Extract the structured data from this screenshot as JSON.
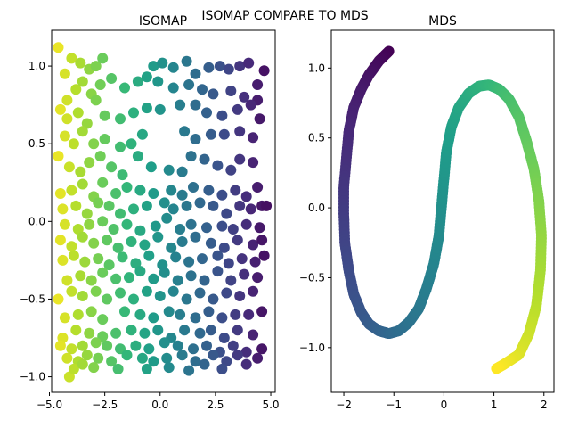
{
  "figure": {
    "suptitle": "ISOMAP COMPARE TO MDS"
  },
  "chart_data": [
    {
      "type": "scatter",
      "title": "ISOMAP",
      "xlabel": "",
      "ylabel": "",
      "xlim": [
        -4.9,
        5.2
      ],
      "ylim": [
        -1.1,
        1.23
      ],
      "xticks": [
        -5.0,
        -2.5,
        0.0,
        2.5,
        5.0
      ],
      "xtick_labels": [
        "−5.0",
        "−2.5",
        "0.0",
        "2.5",
        "5.0"
      ],
      "yticks": [
        -1.0,
        -0.5,
        0.0,
        0.5,
        1.0
      ],
      "ytick_labels": [
        "−1.0",
        "−0.5",
        "0.0",
        "0.5",
        "1.0"
      ],
      "colormap": "viridis (reversed along x)",
      "grid": false,
      "points": [
        [
          -4.6,
          1.12
        ],
        [
          -4.3,
          0.95
        ],
        [
          -4.0,
          1.05
        ],
        [
          -3.6,
          1.02
        ],
        [
          -3.2,
          0.98
        ],
        [
          -2.9,
          1.0
        ],
        [
          -2.6,
          1.05
        ],
        [
          -0.3,
          1.0
        ],
        [
          0.1,
          1.02
        ],
        [
          0.6,
          0.99
        ],
        [
          1.2,
          1.03
        ],
        [
          1.6,
          0.95
        ],
        [
          2.2,
          0.99
        ],
        [
          2.7,
          1.0
        ],
        [
          3.1,
          0.98
        ],
        [
          3.6,
          1.0
        ],
        [
          4.0,
          1.02
        ],
        [
          4.7,
          0.97
        ],
        [
          4.4,
          0.88
        ],
        [
          -4.5,
          0.72
        ],
        [
          -4.2,
          0.78
        ],
        [
          -3.8,
          0.85
        ],
        [
          -3.5,
          0.9
        ],
        [
          -3.1,
          0.82
        ],
        [
          -2.7,
          0.88
        ],
        [
          -2.2,
          0.92
        ],
        [
          -1.6,
          0.86
        ],
        [
          -1.0,
          0.9
        ],
        [
          -0.6,
          0.93
        ],
        [
          -0.1,
          0.9
        ],
        [
          0.6,
          0.86
        ],
        [
          1.3,
          0.88
        ],
        [
          1.9,
          0.85
        ],
        [
          2.4,
          0.82
        ],
        [
          3.2,
          0.84
        ],
        [
          3.8,
          0.8
        ],
        [
          4.4,
          0.78
        ],
        [
          -4.2,
          0.66
        ],
        [
          -3.7,
          0.7
        ],
        [
          -3.3,
          0.63
        ],
        [
          -2.9,
          0.78
        ],
        [
          -2.5,
          0.68
        ],
        [
          -1.8,
          0.66
        ],
        [
          -1.2,
          0.7
        ],
        [
          -0.6,
          0.73
        ],
        [
          0.0,
          0.72
        ],
        [
          0.9,
          0.75
        ],
        [
          1.6,
          0.75
        ],
        [
          2.1,
          0.7
        ],
        [
          2.8,
          0.68
        ],
        [
          3.5,
          0.72
        ],
        [
          4.1,
          0.75
        ],
        [
          4.5,
          0.66
        ],
        [
          -4.3,
          0.55
        ],
        [
          -3.9,
          0.5
        ],
        [
          -3.5,
          0.58
        ],
        [
          -3.0,
          0.5
        ],
        [
          -2.5,
          0.53
        ],
        [
          -1.8,
          0.48
        ],
        [
          -1.3,
          0.5
        ],
        [
          -0.8,
          0.56
        ],
        [
          1.1,
          0.58
        ],
        [
          1.6,
          0.53
        ],
        [
          2.3,
          0.56
        ],
        [
          2.9,
          0.56
        ],
        [
          3.6,
          0.58
        ],
        [
          4.2,
          0.54
        ],
        [
          -4.6,
          0.42
        ],
        [
          -4.1,
          0.35
        ],
        [
          -3.6,
          0.32
        ],
        [
          -3.2,
          0.38
        ],
        [
          -2.7,
          0.42
        ],
        [
          -2.2,
          0.35
        ],
        [
          -1.7,
          0.3
        ],
        [
          -1.0,
          0.42
        ],
        [
          -0.4,
          0.35
        ],
        [
          0.4,
          0.33
        ],
        [
          1.0,
          0.32
        ],
        [
          1.4,
          0.42
        ],
        [
          2.0,
          0.4
        ],
        [
          2.6,
          0.36
        ],
        [
          3.2,
          0.33
        ],
        [
          3.6,
          0.4
        ],
        [
          4.2,
          0.38
        ],
        [
          -4.5,
          0.18
        ],
        [
          -4.0,
          0.2
        ],
        [
          -3.5,
          0.24
        ],
        [
          -3.0,
          0.16
        ],
        [
          -2.6,
          0.25
        ],
        [
          -2.0,
          0.18
        ],
        [
          -1.5,
          0.22
        ],
        [
          -0.9,
          0.2
        ],
        [
          -0.3,
          0.18
        ],
        [
          0.5,
          0.2
        ],
        [
          1.0,
          0.17
        ],
        [
          1.5,
          0.22
        ],
        [
          2.2,
          0.2
        ],
        [
          2.8,
          0.17
        ],
        [
          3.4,
          0.2
        ],
        [
          3.9,
          0.16
        ],
        [
          4.4,
          0.22
        ],
        [
          -4.4,
          0.08
        ],
        [
          -3.8,
          0.1
        ],
        [
          -3.3,
          0.05
        ],
        [
          -2.8,
          0.12
        ],
        [
          -2.3,
          0.1
        ],
        [
          -1.8,
          0.05
        ],
        [
          -1.2,
          0.08
        ],
        [
          -0.6,
          0.1
        ],
        [
          0.2,
          0.12
        ],
        [
          0.6,
          0.08
        ],
        [
          1.2,
          0.1
        ],
        [
          1.8,
          0.12
        ],
        [
          2.4,
          0.1
        ],
        [
          3.0,
          0.05
        ],
        [
          3.6,
          0.1
        ],
        [
          4.1,
          0.08
        ],
        [
          4.6,
          0.1
        ],
        [
          4.8,
          0.1
        ],
        [
          -4.3,
          -0.02
        ],
        [
          -3.7,
          -0.05
        ],
        [
          -3.2,
          -0.02
        ],
        [
          -2.6,
          0.0
        ],
        [
          -2.1,
          -0.05
        ],
        [
          -1.5,
          -0.02
        ],
        [
          -0.9,
          -0.06
        ],
        [
          -0.2,
          -0.03
        ],
        [
          0.3,
          0.02
        ],
        [
          0.9,
          -0.05
        ],
        [
          1.4,
          -0.02
        ],
        [
          2.1,
          -0.04
        ],
        [
          2.8,
          -0.03
        ],
        [
          3.3,
          -0.05
        ],
        [
          3.9,
          -0.02
        ],
        [
          4.5,
          -0.04
        ],
        [
          -4.5,
          -0.12
        ],
        [
          -4.0,
          -0.16
        ],
        [
          -3.5,
          -0.1
        ],
        [
          -3.0,
          -0.14
        ],
        [
          -2.4,
          -0.12
        ],
        [
          -1.9,
          -0.17
        ],
        [
          -1.3,
          -0.13
        ],
        [
          -0.7,
          -0.15
        ],
        [
          -0.1,
          -0.1
        ],
        [
          0.5,
          -0.17
        ],
        [
          1.0,
          -0.13
        ],
        [
          1.6,
          -0.1
        ],
        [
          2.3,
          -0.14
        ],
        [
          2.9,
          -0.17
        ],
        [
          3.5,
          -0.12
        ],
        [
          4.2,
          -0.15
        ],
        [
          4.6,
          -0.12
        ],
        [
          -4.4,
          -0.25
        ],
        [
          -3.9,
          -0.22
        ],
        [
          -3.4,
          -0.26
        ],
        [
          -2.8,
          -0.24
        ],
        [
          -2.3,
          -0.28
        ],
        [
          -1.7,
          -0.23
        ],
        [
          -1.1,
          -0.27
        ],
        [
          -0.5,
          -0.22
        ],
        [
          0.1,
          -0.28
        ],
        [
          0.7,
          -0.23
        ],
        [
          1.3,
          -0.26
        ],
        [
          1.9,
          -0.24
        ],
        [
          2.6,
          -0.22
        ],
        [
          3.1,
          -0.27
        ],
        [
          3.7,
          -0.24
        ],
        [
          4.3,
          -0.26
        ],
        [
          4.7,
          -0.22
        ],
        [
          -4.2,
          -0.38
        ],
        [
          -3.6,
          -0.35
        ],
        [
          -3.1,
          -0.38
        ],
        [
          -2.6,
          -0.33
        ],
        [
          -2.0,
          -0.37
        ],
        [
          -1.4,
          -0.36
        ],
        [
          -0.9,
          -0.32
        ],
        [
          -0.3,
          -0.37
        ],
        [
          0.2,
          -0.33
        ],
        [
          0.8,
          -0.38
        ],
        [
          1.4,
          -0.35
        ],
        [
          2.0,
          -0.38
        ],
        [
          2.6,
          -0.32
        ],
        [
          3.2,
          -0.38
        ],
        [
          3.8,
          -0.34
        ],
        [
          4.4,
          -0.36
        ],
        [
          -4.6,
          -0.5
        ],
        [
          -4.0,
          -0.45
        ],
        [
          -3.5,
          -0.48
        ],
        [
          -2.9,
          -0.45
        ],
        [
          -2.4,
          -0.5
        ],
        [
          -1.8,
          -0.46
        ],
        [
          -1.2,
          -0.5
        ],
        [
          -0.6,
          -0.45
        ],
        [
          0.0,
          -0.48
        ],
        [
          0.6,
          -0.45
        ],
        [
          1.2,
          -0.5
        ],
        [
          1.8,
          -0.46
        ],
        [
          2.4,
          -0.5
        ],
        [
          3.0,
          -0.46
        ],
        [
          3.6,
          -0.48
        ],
        [
          4.2,
          -0.45
        ],
        [
          -4.3,
          -0.62
        ],
        [
          -3.7,
          -0.6
        ],
        [
          -3.1,
          -0.58
        ],
        [
          -2.6,
          -0.63
        ],
        [
          -1.6,
          -0.58
        ],
        [
          -0.9,
          -0.6
        ],
        [
          -0.3,
          -0.62
        ],
        [
          0.4,
          -0.58
        ],
        [
          0.9,
          -0.6
        ],
        [
          1.6,
          -0.62
        ],
        [
          2.2,
          -0.58
        ],
        [
          2.8,
          -0.62
        ],
        [
          3.4,
          -0.6
        ],
        [
          4.0,
          -0.6
        ],
        [
          4.6,
          -0.58
        ],
        [
          -4.4,
          -0.75
        ],
        [
          -3.8,
          -0.7
        ],
        [
          -3.2,
          -0.72
        ],
        [
          -2.6,
          -0.74
        ],
        [
          -2.0,
          -0.72
        ],
        [
          -1.3,
          -0.7
        ],
        [
          -0.7,
          -0.72
        ],
        [
          -0.1,
          -0.7
        ],
        [
          0.5,
          -0.75
        ],
        [
          1.1,
          -0.7
        ],
        [
          1.8,
          -0.72
        ],
        [
          2.3,
          -0.7
        ],
        [
          2.9,
          -0.75
        ],
        [
          3.5,
          -0.7
        ],
        [
          4.2,
          -0.73
        ],
        [
          -4.5,
          -0.8
        ],
        [
          -4.0,
          -0.82
        ],
        [
          -3.5,
          -0.8
        ],
        [
          -2.9,
          -0.78
        ],
        [
          -2.4,
          -0.8
        ],
        [
          -1.8,
          -0.82
        ],
        [
          -1.1,
          -0.8
        ],
        [
          -0.5,
          -0.82
        ],
        [
          0.2,
          -0.78
        ],
        [
          0.8,
          -0.8
        ],
        [
          1.5,
          -0.82
        ],
        [
          2.1,
          -0.8
        ],
        [
          2.7,
          -0.84
        ],
        [
          3.3,
          -0.8
        ],
        [
          3.9,
          -0.84
        ],
        [
          4.6,
          -0.82
        ],
        [
          -4.2,
          -0.88
        ],
        [
          -3.7,
          -0.9
        ],
        [
          -3.3,
          -0.86
        ],
        [
          -2.8,
          -0.88
        ],
        [
          -2.2,
          -0.9
        ],
        [
          -1.5,
          -0.86
        ],
        [
          -0.8,
          -0.88
        ],
        [
          -0.3,
          -0.9
        ],
        [
          0.3,
          -0.88
        ],
        [
          1.0,
          -0.86
        ],
        [
          1.6,
          -0.9
        ],
        [
          2.4,
          -0.86
        ],
        [
          3.0,
          -0.9
        ],
        [
          3.5,
          -0.86
        ],
        [
          4.4,
          -0.88
        ],
        [
          -4.1,
          -1.0
        ],
        [
          -3.9,
          -0.95
        ],
        [
          -3.5,
          -0.92
        ],
        [
          -3.0,
          -0.94
        ],
        [
          -1.9,
          -0.95
        ],
        [
          -0.6,
          -0.95
        ],
        [
          0.4,
          -0.94
        ],
        [
          1.3,
          -0.96
        ],
        [
          2.0,
          -0.92
        ],
        [
          2.8,
          -0.95
        ],
        [
          3.9,
          -0.92
        ]
      ]
    },
    {
      "type": "scatter",
      "title": "MDS",
      "xlabel": "",
      "ylabel": "",
      "xlim": [
        -2.25,
        2.2
      ],
      "ylim": [
        -1.32,
        1.27
      ],
      "xticks": [
        -2,
        -1,
        0,
        1,
        2
      ],
      "xtick_labels": [
        "−2",
        "−1",
        "0",
        "1",
        "2"
      ],
      "yticks": [
        -1.0,
        -0.5,
        0.0,
        0.5,
        1.0
      ],
      "ytick_labels": [
        "−1.0",
        "−0.5",
        "0.0",
        "0.5",
        "1.0"
      ],
      "colormap": "viridis (along curve)",
      "grid": false,
      "curve": [
        [
          -1.1,
          1.12
        ],
        [
          -1.3,
          1.05
        ],
        [
          -1.5,
          0.95
        ],
        [
          -1.65,
          0.85
        ],
        [
          -1.8,
          0.72
        ],
        [
          -1.9,
          0.55
        ],
        [
          -1.95,
          0.35
        ],
        [
          -2.0,
          0.15
        ],
        [
          -2.0,
          -0.05
        ],
        [
          -1.98,
          -0.25
        ],
        [
          -1.9,
          -0.45
        ],
        [
          -1.8,
          -0.62
        ],
        [
          -1.65,
          -0.75
        ],
        [
          -1.5,
          -0.83
        ],
        [
          -1.3,
          -0.88
        ],
        [
          -1.1,
          -0.9
        ],
        [
          -0.9,
          -0.88
        ],
        [
          -0.7,
          -0.82
        ],
        [
          -0.5,
          -0.72
        ],
        [
          -0.35,
          -0.58
        ],
        [
          -0.2,
          -0.4
        ],
        [
          -0.1,
          -0.2
        ],
        [
          -0.05,
          0.0
        ],
        [
          0.0,
          0.2
        ],
        [
          0.05,
          0.4
        ],
        [
          0.15,
          0.58
        ],
        [
          0.3,
          0.72
        ],
        [
          0.5,
          0.82
        ],
        [
          0.7,
          0.87
        ],
        [
          0.9,
          0.88
        ],
        [
          1.1,
          0.85
        ],
        [
          1.3,
          0.78
        ],
        [
          1.5,
          0.65
        ],
        [
          1.65,
          0.48
        ],
        [
          1.8,
          0.28
        ],
        [
          1.9,
          0.05
        ],
        [
          1.95,
          -0.2
        ],
        [
          1.93,
          -0.45
        ],
        [
          1.85,
          -0.7
        ],
        [
          1.7,
          -0.9
        ],
        [
          1.5,
          -1.05
        ],
        [
          1.2,
          -1.12
        ],
        [
          1.05,
          -1.15
        ]
      ]
    }
  ]
}
